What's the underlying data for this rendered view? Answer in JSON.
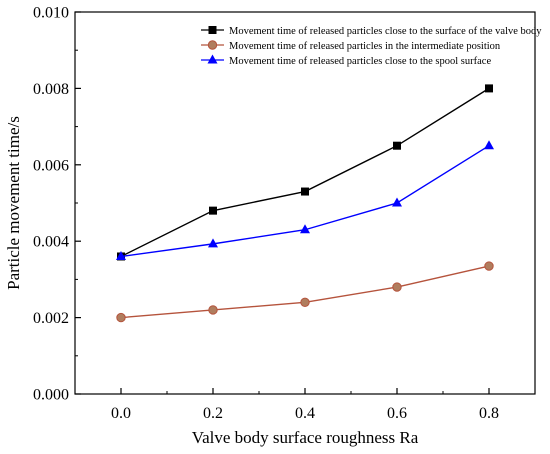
{
  "chart_data": {
    "type": "line",
    "title": "",
    "xlabel": "Valve body surface roughness Ra",
    "ylabel": "Particle movement time/s",
    "xlim": [
      -0.1,
      0.9
    ],
    "ylim": [
      0.0,
      0.01
    ],
    "xticks": [
      "0.0",
      "0.2",
      "0.4",
      "0.6",
      "0.8"
    ],
    "yticks": [
      "0.000",
      "0.002",
      "0.004",
      "0.006",
      "0.008",
      "0.010"
    ],
    "x": [
      0.0,
      0.2,
      0.4,
      0.6,
      0.8
    ],
    "grid": false,
    "legend_position": "top-left",
    "series": [
      {
        "name": "Movement time of released particles close to the surface of the valve body",
        "values": [
          0.0036,
          0.0048,
          0.0053,
          0.0065,
          0.008
        ],
        "color": "#000000",
        "marker": "square"
      },
      {
        "name": "Movement time of released particles in the intermediate position",
        "values": [
          0.002,
          0.0022,
          0.0024,
          0.0028,
          0.00335
        ],
        "color": "#b5533c",
        "marker_fill": "#b07d5e",
        "marker": "circle"
      },
      {
        "name": "Movement time of released particles close to the spool surface",
        "values": [
          0.0036,
          0.00393,
          0.0043,
          0.005,
          0.0065
        ],
        "color": "#0000ff",
        "marker": "triangle"
      }
    ]
  }
}
